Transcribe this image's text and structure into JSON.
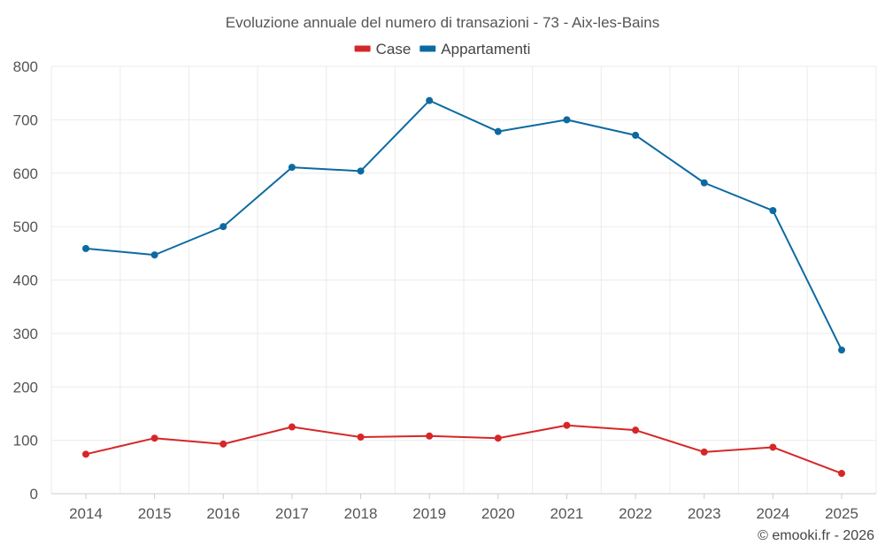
{
  "chart_data": {
    "type": "line",
    "title": "Evoluzione annuale del numero di transazioni - 73 - Aix-les-Bains",
    "xlabel": "",
    "ylabel": "",
    "categories": [
      "2014",
      "2015",
      "2016",
      "2017",
      "2018",
      "2019",
      "2020",
      "2021",
      "2022",
      "2023",
      "2024",
      "2025"
    ],
    "ylim": [
      0,
      800
    ],
    "yticks": [
      0,
      100,
      200,
      300,
      400,
      500,
      600,
      700,
      800
    ],
    "grid": true,
    "legend_position": "top-center",
    "series": [
      {
        "name": "Case",
        "color": "#d62728",
        "values": [
          74,
          104,
          93,
          125,
          106,
          108,
          104,
          128,
          119,
          78,
          87,
          38
        ]
      },
      {
        "name": "Appartamenti",
        "color": "#0d6aa1",
        "values": [
          459,
          447,
          500,
          611,
          604,
          736,
          678,
          700,
          671,
          582,
          530,
          269
        ]
      }
    ]
  },
  "credit": "© emooki.fr - 2026"
}
